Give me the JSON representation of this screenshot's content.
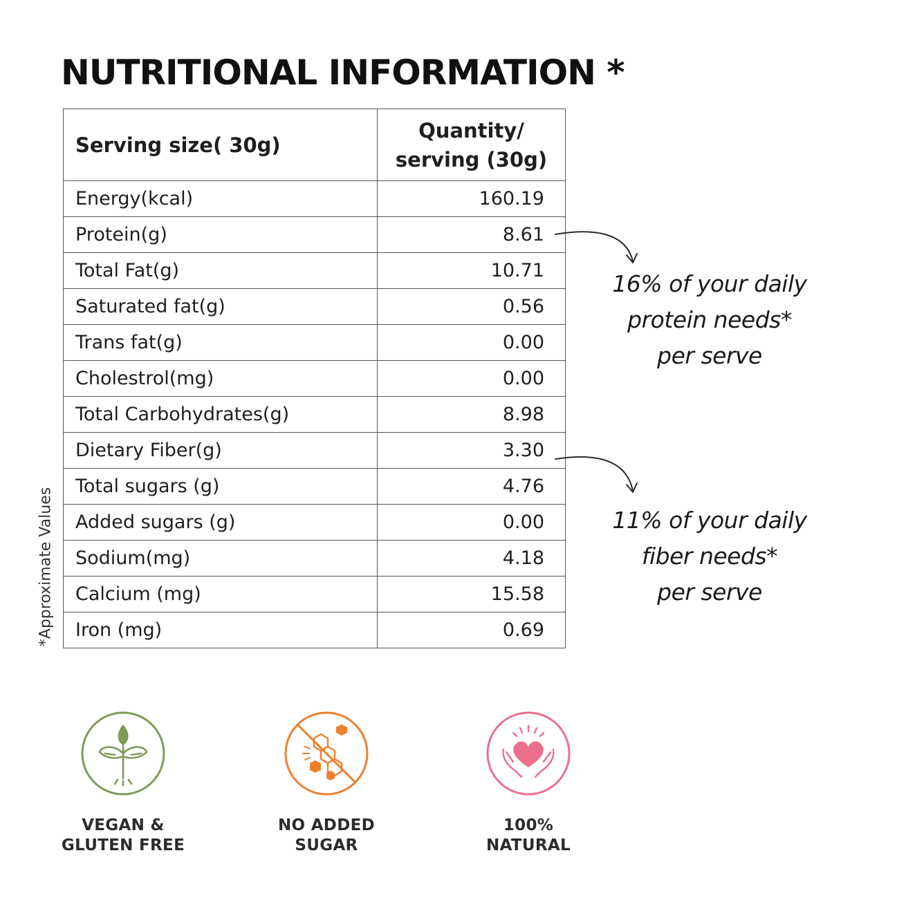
{
  "title": "NUTRITIONAL INFORMATION *",
  "side_note": "*Approximate Values",
  "table": {
    "header": {
      "col1": "Serving size( 30g)",
      "col2_line1": "Quantity/",
      "col2_line2": "serving (30g)"
    },
    "rows": [
      {
        "nutrient": "Energy(kcal)",
        "value": "160.19"
      },
      {
        "nutrient": "Protein(g)",
        "value": "8.61"
      },
      {
        "nutrient": "Total Fat(g)",
        "value": "10.71"
      },
      {
        "nutrient": "Saturated fat(g)",
        "value": "0.56"
      },
      {
        "nutrient": "Trans fat(g)",
        "value": "0.00"
      },
      {
        "nutrient": "Cholestrol(mg)",
        "value": "0.00"
      },
      {
        "nutrient": "Total Carbohydrates(g)",
        "value": "8.98"
      },
      {
        "nutrient": "Dietary Fiber(g)",
        "value": "3.30"
      },
      {
        "nutrient": "Total sugars (g)",
        "value": "4.76"
      },
      {
        "nutrient": "Added sugars (g)",
        "value": "0.00"
      },
      {
        "nutrient": "Sodium(mg)",
        "value": "4.18"
      },
      {
        "nutrient": "Calcium (mg)",
        "value": "15.58"
      },
      {
        "nutrient": "Iron (mg)",
        "value": "0.69"
      }
    ]
  },
  "notes": {
    "protein": {
      "line1": "16% of your daily",
      "line2": "protein needs*",
      "line3": "per serve"
    },
    "fiber": {
      "line1": "11% of your daily",
      "line2": "fiber needs*",
      "line3": "per serve"
    }
  },
  "badges": [
    {
      "icon": "plant-sprout-icon",
      "color": "#7e9a58",
      "line1": "VEGAN &",
      "line2": "GLUTEN FREE"
    },
    {
      "icon": "no-sugar-cubes-icon",
      "color": "#ef7f2d",
      "line1": "NO ADDED",
      "line2": "SUGAR"
    },
    {
      "icon": "heart-hands-icon",
      "color": "#ec6f8c",
      "line1": "100%",
      "line2": "NATURAL"
    }
  ]
}
